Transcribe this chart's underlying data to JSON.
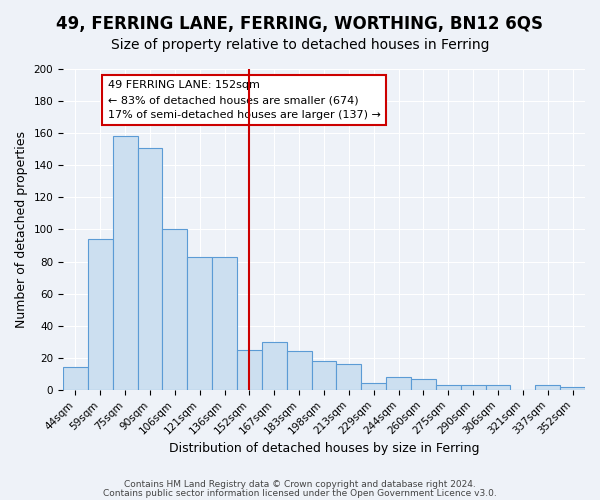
{
  "title": "49, FERRING LANE, FERRING, WORTHING, BN12 6QS",
  "subtitle": "Size of property relative to detached houses in Ferring",
  "xlabel": "Distribution of detached houses by size in Ferring",
  "ylabel": "Number of detached properties",
  "categories": [
    "44sqm",
    "59sqm",
    "75sqm",
    "90sqm",
    "106sqm",
    "121sqm",
    "136sqm",
    "152sqm",
    "167sqm",
    "183sqm",
    "198sqm",
    "213sqm",
    "229sqm",
    "244sqm",
    "260sqm",
    "275sqm",
    "290sqm",
    "306sqm",
    "321sqm",
    "337sqm",
    "352sqm"
  ],
  "values": [
    14,
    94,
    158,
    151,
    100,
    83,
    83,
    25,
    30,
    24,
    18,
    16,
    4,
    8,
    7,
    3,
    3,
    3,
    0,
    3,
    2
  ],
  "bar_color": "#ccdff0",
  "bar_edge_color": "#5b9bd5",
  "vline_x_index": 7,
  "vline_color": "#cc0000",
  "ylim": [
    0,
    200
  ],
  "yticks": [
    0,
    20,
    40,
    60,
    80,
    100,
    120,
    140,
    160,
    180,
    200
  ],
  "annotation_title": "49 FERRING LANE: 152sqm",
  "annotation_line1": "← 83% of detached houses are smaller (674)",
  "annotation_line2": "17% of semi-detached houses are larger (137) →",
  "annotation_box_color": "#ffffff",
  "annotation_box_edge_color": "#cc0000",
  "footer1": "Contains HM Land Registry data © Crown copyright and database right 2024.",
  "footer2": "Contains public sector information licensed under the Open Government Licence v3.0.",
  "background_color": "#eef2f8",
  "grid_color": "#ffffff",
  "title_fontsize": 12,
  "subtitle_fontsize": 10,
  "axis_label_fontsize": 9,
  "tick_fontsize": 7.5,
  "footer_fontsize": 6.5
}
